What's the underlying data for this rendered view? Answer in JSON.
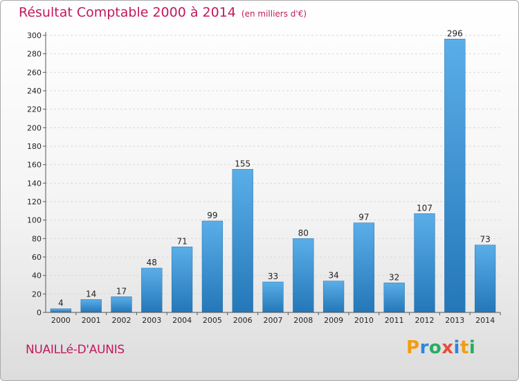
{
  "header": {
    "title": "Résultat Comptable 2000 à 2014",
    "subtitle": "(en milliers d'€)"
  },
  "footer": {
    "commune": "NUAILLé-D'AUNIS",
    "logo_letters": [
      "P",
      "r",
      "o",
      "x",
      "i",
      "t",
      "i"
    ],
    "logo_colors": [
      "#f39c12",
      "#2e86de",
      "#27ae60",
      "#e74c3c",
      "#2e86de",
      "#f39c12",
      "#27ae60"
    ]
  },
  "chart_data": {
    "type": "bar",
    "title": "Résultat Comptable 2000 à 2014",
    "subtitle": "(en milliers d'€)",
    "categories": [
      "2000",
      "2001",
      "2002",
      "2003",
      "2004",
      "2005",
      "2006",
      "2007",
      "2008",
      "2009",
      "2010",
      "2011",
      "2012",
      "2013",
      "2014"
    ],
    "values": [
      4,
      14,
      17,
      48,
      71,
      99,
      155,
      33,
      80,
      34,
      97,
      32,
      107,
      296,
      73
    ],
    "ylim": [
      0,
      300
    ],
    "yticks": [
      0,
      20,
      40,
      60,
      80,
      100,
      120,
      140,
      160,
      180,
      200,
      220,
      240,
      260,
      280,
      300
    ],
    "grid": true,
    "bar_color": "#3d8fd1"
  }
}
